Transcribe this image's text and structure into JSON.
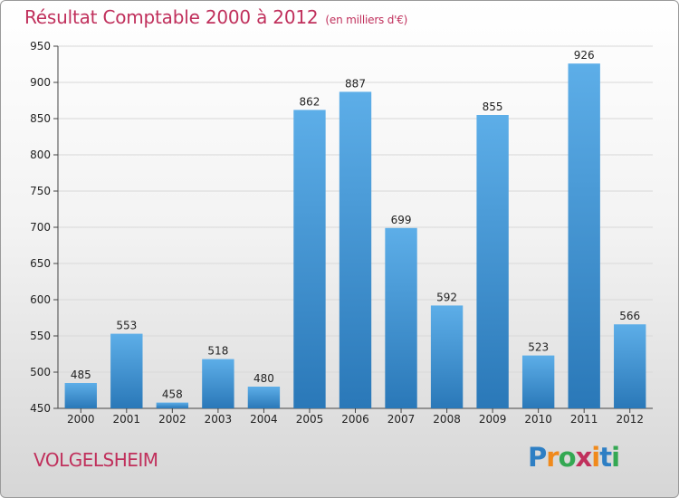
{
  "title": "Résultat Comptable 2000 à 2012",
  "subtitle": "(en milliers d'€)",
  "commune": "VOLGELSHEIM",
  "logo": {
    "text": "Proxiti",
    "letter_colors": [
      "#2e7fc4",
      "#f08a1c",
      "#34a853",
      "#c0305c",
      "#f08a1c",
      "#2e7fc4",
      "#34a853"
    ]
  },
  "colors": {
    "title": "#c0305c",
    "bar_light": "#5daee8",
    "bar_dark": "#2a78b8"
  },
  "chart_data": {
    "type": "bar",
    "title": "Résultat Comptable 2000 à 2012",
    "subtitle": "(en milliers d'€)",
    "xlabel": "",
    "ylabel": "",
    "categories": [
      "2000",
      "2001",
      "2002",
      "2003",
      "2004",
      "2005",
      "2006",
      "2007",
      "2008",
      "2009",
      "2010",
      "2011",
      "2012"
    ],
    "values": [
      485,
      553,
      458,
      518,
      480,
      862,
      887,
      699,
      592,
      855,
      523,
      926,
      566
    ],
    "ylim": [
      450,
      950
    ],
    "yticks": [
      450,
      500,
      550,
      600,
      650,
      700,
      750,
      800,
      850,
      900,
      950
    ],
    "grid": true,
    "legend": "none"
  }
}
